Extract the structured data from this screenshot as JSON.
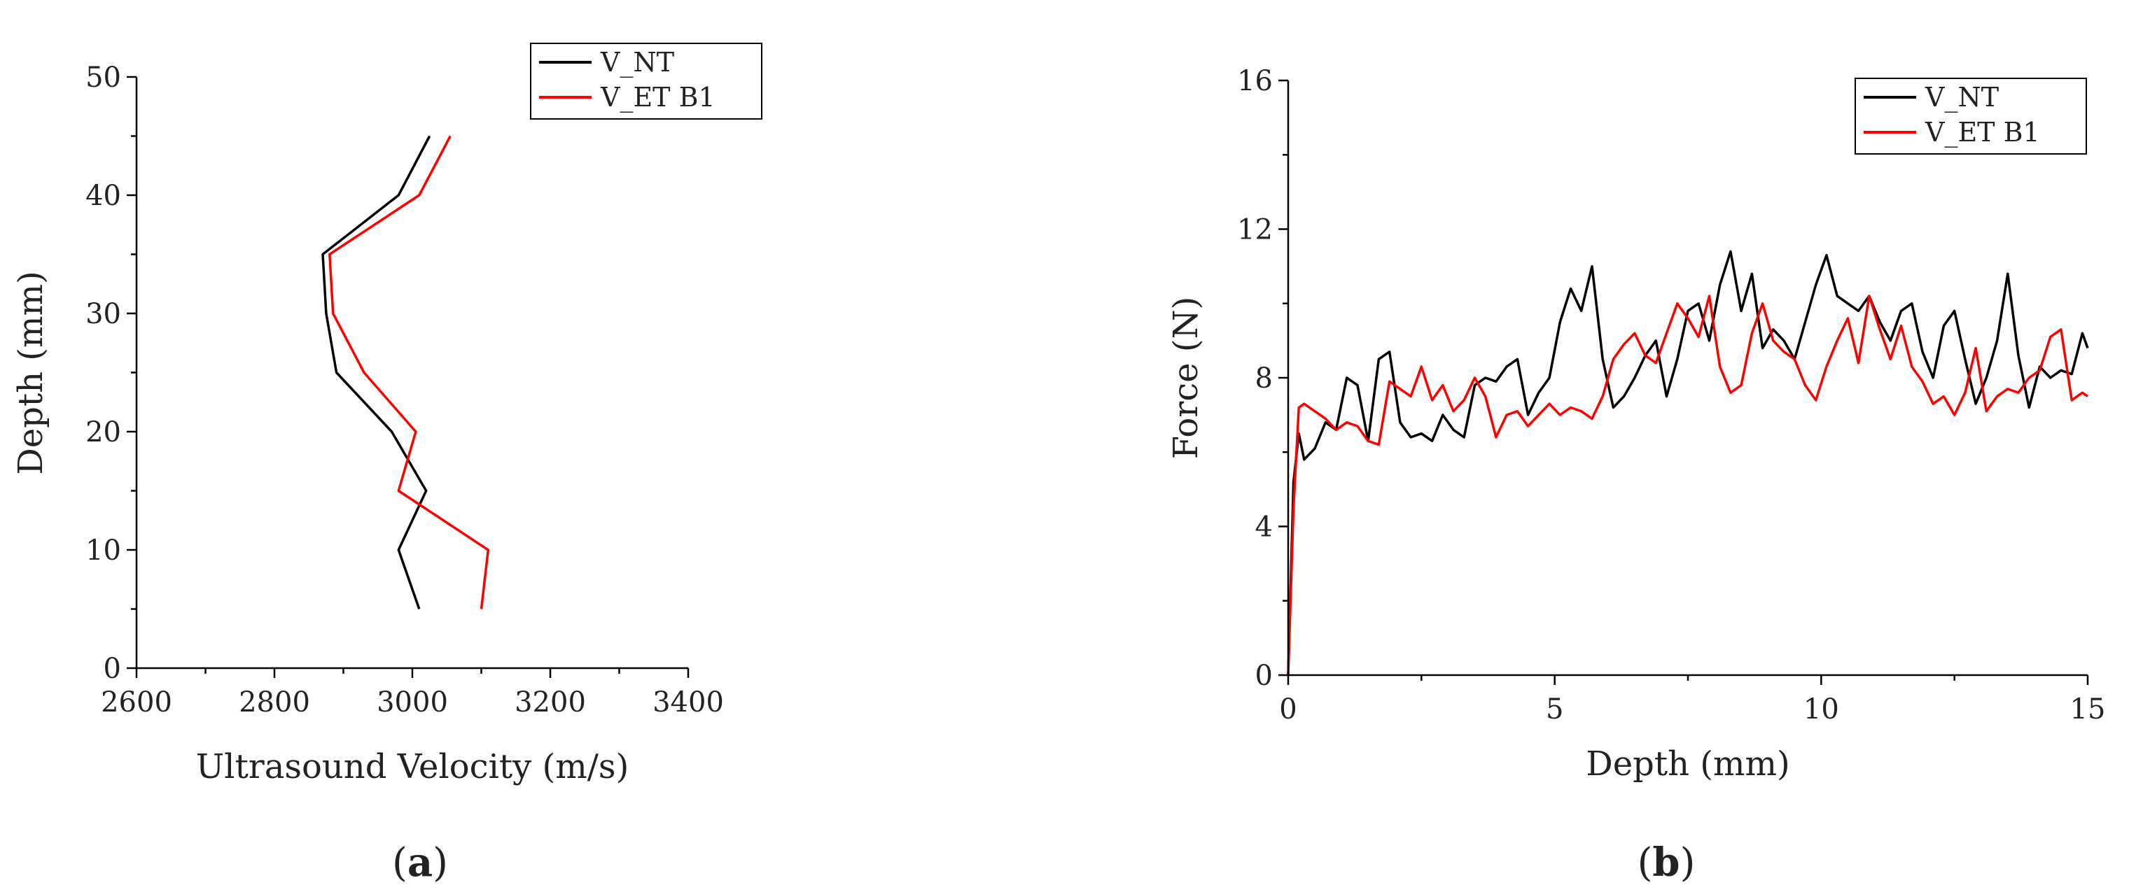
{
  "chart_data": [
    {
      "type": "line",
      "panel_label": "a",
      "xlabel": "Ultrasound Velocity (m/s)",
      "ylabel": "Depth (mm)",
      "xlim": [
        2600,
        3400
      ],
      "ylim": [
        0,
        50
      ],
      "xticks": [
        2600,
        2800,
        3000,
        3200,
        3400
      ],
      "yticks": [
        0,
        10,
        20,
        30,
        40,
        50
      ],
      "legend_position": "top-right",
      "series": [
        {
          "name": "V_NT",
          "color": "#000000",
          "x": [
            3010,
            2980,
            3020,
            2970,
            2890,
            2875,
            2870,
            2980,
            3025
          ],
          "y": [
            5,
            10,
            15,
            20,
            25,
            30,
            35,
            40,
            45
          ]
        },
        {
          "name": "V_ET B1",
          "color": "#ff0000",
          "x": [
            3100,
            3110,
            2980,
            3005,
            2930,
            2885,
            2880,
            3010,
            3055
          ],
          "y": [
            5,
            10,
            15,
            20,
            25,
            30,
            35,
            40,
            45
          ]
        }
      ]
    },
    {
      "type": "line",
      "panel_label": "b",
      "xlabel": "Depth (mm)",
      "ylabel": "Force (N)",
      "xlim": [
        0,
        15
      ],
      "ylim": [
        0,
        16
      ],
      "xticks": [
        0,
        5,
        10,
        15
      ],
      "yticks": [
        0,
        4,
        8,
        12,
        16
      ],
      "legend_position": "top-right",
      "series": [
        {
          "name": "V_NT",
          "color": "#000000",
          "x": [
            0,
            0.1,
            0.2,
            0.3,
            0.5,
            0.7,
            0.9,
            1.1,
            1.3,
            1.5,
            1.7,
            1.9,
            2.1,
            2.3,
            2.5,
            2.7,
            2.9,
            3.1,
            3.3,
            3.5,
            3.7,
            3.9,
            4.1,
            4.3,
            4.5,
            4.7,
            4.9,
            5.1,
            5.3,
            5.5,
            5.7,
            5.9,
            6.1,
            6.3,
            6.5,
            6.7,
            6.9,
            7.1,
            7.3,
            7.5,
            7.7,
            7.9,
            8.1,
            8.3,
            8.5,
            8.7,
            8.9,
            9.1,
            9.3,
            9.5,
            9.7,
            9.9,
            10.1,
            10.3,
            10.5,
            10.7,
            10.9,
            11.1,
            11.3,
            11.5,
            11.7,
            11.9,
            12.1,
            12.3,
            12.5,
            12.7,
            12.9,
            13.1,
            13.3,
            13.5,
            13.7,
            13.9,
            14.1,
            14.3,
            14.5,
            14.7,
            14.9,
            15
          ],
          "y": [
            0,
            5.2,
            6.5,
            5.8,
            6.1,
            6.8,
            6.6,
            8.0,
            7.8,
            6.3,
            8.5,
            8.7,
            6.8,
            6.4,
            6.5,
            6.3,
            7.0,
            6.6,
            6.4,
            7.8,
            8.0,
            7.9,
            8.3,
            8.5,
            7.0,
            7.6,
            8.0,
            9.5,
            10.4,
            9.8,
            11.0,
            8.5,
            7.2,
            7.5,
            8.0,
            8.6,
            9.0,
            7.5,
            8.5,
            9.8,
            10.0,
            9.0,
            10.5,
            11.4,
            9.8,
            10.8,
            8.8,
            9.3,
            9.0,
            8.5,
            9.5,
            10.5,
            11.3,
            10.2,
            10.0,
            9.8,
            10.2,
            9.5,
            9.0,
            9.8,
            10.0,
            8.7,
            8.0,
            9.4,
            9.8,
            8.5,
            7.3,
            8.0,
            9.0,
            10.8,
            8.6,
            7.2,
            8.3,
            8.0,
            8.2,
            8.1,
            9.2,
            8.8
          ]
        },
        {
          "name": "V_ET B1",
          "color": "#ff0000",
          "x": [
            0,
            0.1,
            0.2,
            0.3,
            0.5,
            0.7,
            0.9,
            1.1,
            1.3,
            1.5,
            1.7,
            1.9,
            2.1,
            2.3,
            2.5,
            2.7,
            2.9,
            3.1,
            3.3,
            3.5,
            3.7,
            3.9,
            4.1,
            4.3,
            4.5,
            4.7,
            4.9,
            5.1,
            5.3,
            5.5,
            5.7,
            5.9,
            6.1,
            6.3,
            6.5,
            6.7,
            6.9,
            7.1,
            7.3,
            7.5,
            7.7,
            7.9,
            8.1,
            8.3,
            8.5,
            8.7,
            8.9,
            9.1,
            9.3,
            9.5,
            9.7,
            9.9,
            10.1,
            10.3,
            10.5,
            10.7,
            10.9,
            11.1,
            11.3,
            11.5,
            11.7,
            11.9,
            12.1,
            12.3,
            12.5,
            12.7,
            12.9,
            13.1,
            13.3,
            13.5,
            13.7,
            13.9,
            14.1,
            14.3,
            14.5,
            14.7,
            14.9,
            15
          ],
          "y": [
            0,
            4.5,
            7.2,
            7.3,
            7.1,
            6.9,
            6.6,
            6.8,
            6.7,
            6.3,
            6.2,
            7.9,
            7.7,
            7.5,
            8.3,
            7.4,
            7.8,
            7.1,
            7.4,
            8.0,
            7.5,
            6.4,
            7.0,
            7.1,
            6.7,
            7.0,
            7.3,
            7.0,
            7.2,
            7.1,
            6.9,
            7.5,
            8.5,
            8.9,
            9.2,
            8.6,
            8.4,
            9.2,
            10.0,
            9.6,
            9.1,
            10.2,
            8.3,
            7.6,
            7.8,
            9.2,
            10.0,
            9.0,
            8.7,
            8.5,
            7.8,
            7.4,
            8.3,
            9.0,
            9.6,
            8.4,
            10.2,
            9.3,
            8.5,
            9.4,
            8.3,
            7.9,
            7.3,
            7.5,
            7.0,
            7.6,
            8.8,
            7.1,
            7.5,
            7.7,
            7.6,
            8.0,
            8.2,
            9.1,
            9.3,
            7.4,
            7.6,
            7.5
          ]
        }
      ]
    }
  ]
}
